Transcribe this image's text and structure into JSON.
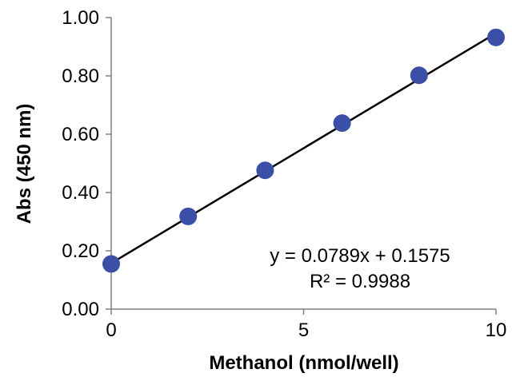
{
  "chart_data": {
    "type": "scatter",
    "title": "",
    "xlabel": "Methanol (nmol/well)",
    "ylabel": "Abs (450 nm)",
    "xlim": [
      0,
      10
    ],
    "ylim": [
      0,
      1
    ],
    "x_ticks": [
      0,
      5,
      10
    ],
    "x_tick_labels": [
      "0",
      "5",
      "10"
    ],
    "y_ticks": [
      0,
      0.2,
      0.4,
      0.6,
      0.8,
      1.0
    ],
    "y_tick_labels": [
      "0.00",
      "0.20",
      "0.40",
      "0.60",
      "0.80",
      "1.00"
    ],
    "grid": false,
    "legend": "none",
    "series": [
      {
        "x": [
          0,
          2,
          4,
          6,
          8,
          10
        ],
        "y": [
          0.155,
          0.318,
          0.476,
          0.638,
          0.802,
          0.932
        ],
        "marker_color": "#3a4fa5"
      }
    ],
    "trendline": {
      "type": "linear",
      "slope": 0.0789,
      "intercept": 0.1575,
      "x_range": [
        0,
        10
      ],
      "color": "#000000"
    },
    "annotations": {
      "equation": "y = 0.0789x + 0.1575",
      "r_squared": "R² = 0.9988"
    }
  }
}
